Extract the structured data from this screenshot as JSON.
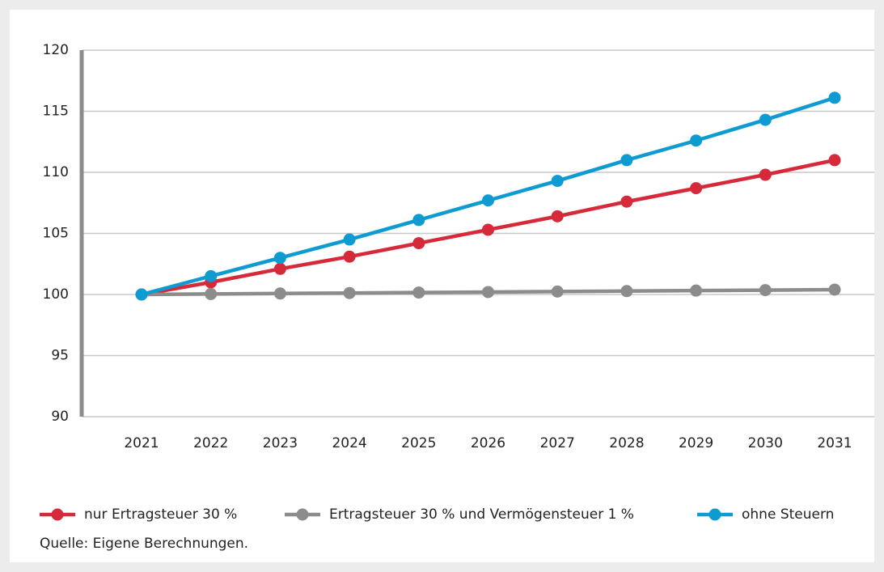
{
  "chart_data": {
    "type": "line",
    "categories": [
      "2021",
      "2022",
      "2023",
      "2024",
      "2025",
      "2026",
      "2027",
      "2028",
      "2029",
      "2030",
      "2031"
    ],
    "series": [
      {
        "name": "nur Ertragsteuer 30 %",
        "color": "#d62a3a",
        "values": [
          100,
          101.0,
          102.1,
          103.1,
          104.2,
          105.3,
          106.4,
          107.6,
          108.7,
          109.8,
          111.0
        ]
      },
      {
        "name": "Ertragsteuer 30 % und Vermögensteuer 1 %",
        "color": "#8c8c8c",
        "values": [
          100,
          100.04,
          100.08,
          100.12,
          100.16,
          100.2,
          100.24,
          100.28,
          100.32,
          100.36,
          100.4
        ]
      },
      {
        "name": "ohne Steuern",
        "color": "#0e9bd2",
        "values": [
          100,
          101.5,
          103.0,
          104.5,
          106.1,
          107.7,
          109.3,
          111.0,
          112.6,
          114.3,
          116.1
        ]
      }
    ],
    "ylim": [
      90,
      120
    ],
    "yticks": [
      90,
      95,
      100,
      105,
      110,
      115,
      120
    ],
    "grid": true,
    "legend": "bottom",
    "source": "Quelle: Eigene Berechnungen."
  }
}
